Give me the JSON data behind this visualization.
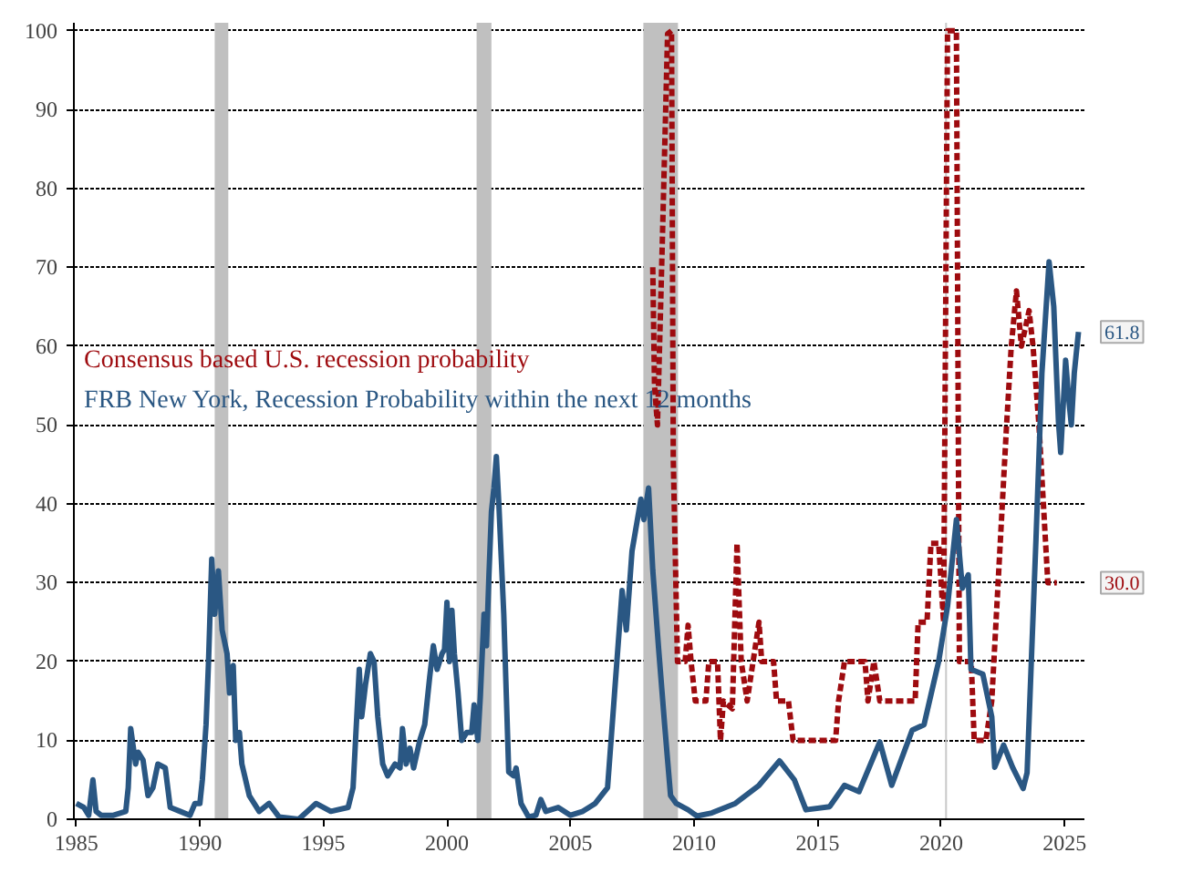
{
  "chart_data": {
    "type": "line",
    "xlim": [
      1984.9,
      2025.8
    ],
    "xticks": [
      1985,
      1990,
      1995,
      2000,
      2005,
      2010,
      2015,
      2020,
      2025
    ],
    "ylim": [
      0,
      101
    ],
    "yticks": [
      0,
      10,
      20,
      30,
      40,
      50,
      60,
      70,
      80,
      90,
      100
    ],
    "grid": "y",
    "legend": "left",
    "series": [
      {
        "name": "Consensus based U.S. recession probability",
        "color": "#9e0b0f",
        "line_style": "dashed",
        "x": [
          2008.33,
          2008.4,
          2008.52,
          2008.69,
          2008.93,
          2009.09,
          2009.16,
          2009.33,
          2009.64,
          2009.76,
          2009.88,
          2010.05,
          2010.48,
          2010.6,
          2010.95,
          2011.07,
          2011.19,
          2011.55,
          2011.74,
          2011.91,
          2012.15,
          2012.39,
          2012.63,
          2012.74,
          2013.22,
          2013.34,
          2013.82,
          2014.01,
          2015.73,
          2015.85,
          2016.09,
          2016.92,
          2017.04,
          2017.28,
          2017.52,
          2018.95,
          2019.07,
          2019.43,
          2019.59,
          2019.9,
          2020.1,
          2020.26,
          2020.62,
          2020.74,
          2021.22,
          2021.34,
          2021.81,
          2022.05,
          2022.65,
          2022.84,
          2023.05,
          2023.25,
          2023.56,
          2023.72,
          2023.96,
          2024.32,
          2024.68
        ],
        "values": [
          70,
          55,
          50,
          70,
          99.6,
          100,
          45.7,
          20,
          20,
          24.6,
          20,
          15,
          15,
          20,
          20,
          10,
          15,
          14,
          35,
          20,
          15,
          20,
          25,
          20,
          20,
          15,
          15,
          10,
          10,
          15,
          20,
          20,
          15,
          20,
          15,
          15,
          25,
          25,
          35,
          35,
          25,
          100,
          100,
          20,
          20,
          10,
          10,
          15,
          50,
          60,
          67,
          60,
          64.5,
          60,
          50,
          30,
          30
        ]
      },
      {
        "name": "FRB New York, Recession Probability within the next 12 months",
        "color": "#2a5783",
        "line_style": "solid",
        "x": [
          1985.0,
          1985.3,
          1985.5,
          1985.67,
          1985.8,
          1986.0,
          1986.5,
          1987.0,
          1987.1,
          1987.2,
          1987.4,
          1987.5,
          1987.7,
          1987.9,
          1988.1,
          1988.3,
          1988.6,
          1988.8,
          1989.2,
          1989.6,
          1989.8,
          1990.0,
          1990.1,
          1990.25,
          1990.35,
          1990.48,
          1990.6,
          1990.75,
          1990.9,
          1991.1,
          1991.2,
          1991.35,
          1991.45,
          1991.6,
          1991.7,
          1992.0,
          1992.4,
          1992.8,
          1993.2,
          1994.0,
          1994.7,
          1995.3,
          1996.0,
          1996.2,
          1996.45,
          1996.55,
          1996.7,
          1996.9,
          1997.05,
          1997.2,
          1997.4,
          1997.6,
          1997.9,
          1998.1,
          1998.2,
          1998.35,
          1998.5,
          1998.65,
          1998.9,
          1999.1,
          1999.3,
          1999.45,
          1999.6,
          1999.8,
          1999.9,
          2000.0,
          2000.1,
          2000.2,
          2000.3,
          2000.45,
          2000.6,
          2000.8,
          2001.0,
          2001.1,
          2001.25,
          2001.35,
          2001.5,
          2001.6,
          2001.7,
          2001.8,
          2001.9,
          2002.0,
          2002.1,
          2002.2,
          2002.3,
          2002.35,
          2002.5,
          2002.7,
          2002.8,
          2003.0,
          2003.3,
          2003.6,
          2003.8,
          2004.0,
          2004.5,
          2005.0,
          2005.5,
          2006.0,
          2006.5,
          2007.09,
          2007.26,
          2007.49,
          2007.85,
          2007.97,
          2008.16,
          2008.33,
          2008.57,
          2008.81,
          2009.05,
          2009.28,
          2009.76,
          2010.12,
          2010.72,
          2011.67,
          2012.63,
          2013.46,
          2014.06,
          2014.53,
          2015.49,
          2016.09,
          2016.68,
          2017.52,
          2018.0,
          2018.83,
          2019.31,
          2019.9,
          2020.26,
          2020.62,
          2020.86,
          2021.1,
          2021.21,
          2021.69,
          2022.05,
          2022.17,
          2022.53,
          2022.89,
          2023.32,
          2023.48,
          2023.84,
          2024.08,
          2024.37,
          2024.56,
          2024.75,
          2024.84,
          2025.04,
          2025.16,
          2025.27,
          2025.39,
          2025.56
        ],
        "values": [
          2,
          1.5,
          0.5,
          5,
          1,
          0.5,
          0.5,
          1,
          4,
          11.5,
          7,
          8.5,
          7.5,
          3,
          4,
          7,
          6.5,
          1.5,
          1,
          0.5,
          2,
          2,
          5,
          12,
          20,
          33,
          26,
          31.5,
          24,
          21,
          16,
          19.5,
          10,
          11,
          7,
          3,
          1,
          2,
          0.3,
          0,
          2,
          1,
          1.5,
          4,
          19,
          13,
          17,
          21,
          20,
          13,
          7,
          5.5,
          7,
          6.5,
          11.5,
          7,
          9,
          6.5,
          10,
          12,
          18,
          22,
          19,
          21,
          21.5,
          27.5,
          20,
          26.5,
          21,
          16,
          10,
          11,
          11,
          14.5,
          10,
          15.5,
          26,
          22,
          31,
          39,
          42,
          46,
          40,
          33,
          26,
          21,
          6,
          5.5,
          6.5,
          2,
          0.3,
          0.5,
          2.5,
          1,
          1.5,
          0.5,
          1,
          2,
          4,
          29,
          24,
          34,
          40.6,
          38,
          42,
          31.6,
          21.5,
          12,
          3,
          2,
          1.2,
          0.4,
          0.8,
          2,
          4.3,
          7.4,
          5,
          1.2,
          1.6,
          4.3,
          3.5,
          9.8,
          4.3,
          11.3,
          12,
          20,
          27,
          38,
          29.3,
          31,
          19,
          18.4,
          13,
          6.6,
          9.4,
          6.6,
          3.9,
          5.9,
          35.5,
          56.6,
          70.7,
          65,
          50.4,
          46.5,
          58.2,
          53.5,
          50,
          56.6,
          61.8
        ]
      }
    ],
    "bands": [
      {
        "axis": "x",
        "from": 1990.6,
        "to": 1991.15,
        "color": "#c0c0c0"
      },
      {
        "axis": "x",
        "from": 2001.2,
        "to": 2001.8,
        "color": "#c0c0c0"
      },
      {
        "axis": "x",
        "from": 2007.95,
        "to": 2009.35,
        "color": "#c0c0c0"
      }
    ],
    "ref_lines": [
      {
        "axis": "x",
        "value": 2020.2,
        "color": "#c8c8c8"
      }
    ],
    "annotations": [
      {
        "text": "61.8",
        "x": 2025.56,
        "y": 61.8
      },
      {
        "text": "30.0",
        "x": 2024.68,
        "y": 30.0
      }
    ]
  }
}
